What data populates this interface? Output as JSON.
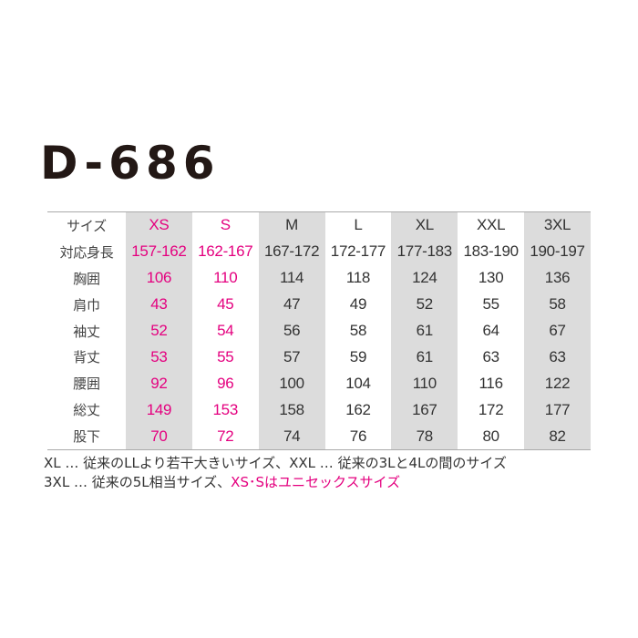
{
  "title": "D-686",
  "accent_color": "#e4007f",
  "shaded_column_color": "#dcdcdc",
  "table": {
    "header_label": "サイズ",
    "sizes": [
      "XS",
      "S",
      "M",
      "L",
      "XL",
      "XXL",
      "3XL"
    ],
    "highlighted_sizes": [
      "XS",
      "S"
    ],
    "shaded_sizes": [
      "XS",
      "M",
      "XL",
      "3XL"
    ],
    "rows": [
      {
        "label": "対応身長",
        "values": [
          "157-162",
          "162-167",
          "167-172",
          "172-177",
          "177-183",
          "183-190",
          "190-197"
        ]
      },
      {
        "label": "胸囲",
        "values": [
          "106",
          "110",
          "114",
          "118",
          "124",
          "130",
          "136"
        ]
      },
      {
        "label": "肩巾",
        "values": [
          "43",
          "45",
          "47",
          "49",
          "52",
          "55",
          "58"
        ]
      },
      {
        "label": "袖丈",
        "values": [
          "52",
          "54",
          "56",
          "58",
          "61",
          "64",
          "67"
        ]
      },
      {
        "label": "背丈",
        "values": [
          "53",
          "55",
          "57",
          "59",
          "61",
          "63",
          "63"
        ]
      },
      {
        "label": "腰囲",
        "values": [
          "92",
          "96",
          "100",
          "104",
          "110",
          "116",
          "122"
        ]
      },
      {
        "label": "総丈",
        "values": [
          "149",
          "153",
          "158",
          "162",
          "167",
          "172",
          "177"
        ]
      },
      {
        "label": "股下",
        "values": [
          "70",
          "72",
          "74",
          "76",
          "78",
          "80",
          "82"
        ]
      }
    ]
  },
  "notes": {
    "line1": "XL … 従来のLLより若干大きいサイズ、XXL … 従来の3Lと4Lの間のサイズ",
    "line2_plain": "3XL … 従来の5L相当サイズ、",
    "line2_highlight": "XS･Sはユニセックスサイズ"
  }
}
